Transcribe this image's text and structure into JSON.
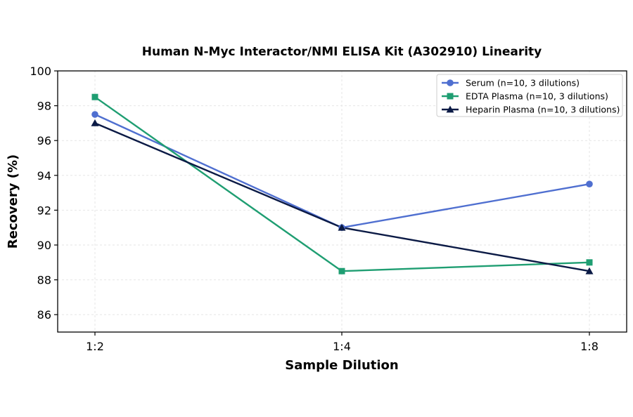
{
  "chart_data": {
    "type": "line",
    "title": "Human N-Myc Interactor/NMI ELISA Kit (A302910) Linearity",
    "xlabel": "Sample Dilution",
    "ylabel": "Recovery (%)",
    "categories": [
      "1:2",
      "1:4",
      "1:8"
    ],
    "ylim": [
      85,
      100
    ],
    "yticks": [
      86,
      88,
      90,
      92,
      94,
      96,
      98,
      100
    ],
    "grid": true,
    "legend_position": "top-right",
    "series": [
      {
        "name": "Serum (n=10, 3 dilutions)",
        "values": [
          97.5,
          91.0,
          93.5
        ],
        "color": "#4f6fd0",
        "marker": "circle"
      },
      {
        "name": "EDTA Plasma (n=10, 3 dilutions)",
        "values": [
          98.5,
          88.5,
          89.0
        ],
        "color": "#1f9e72",
        "marker": "square"
      },
      {
        "name": "Heparin Plasma (n=10, 3 dilutions)",
        "values": [
          97.0,
          91.0,
          88.5
        ],
        "color": "#0b1a45",
        "marker": "triangle"
      }
    ]
  }
}
